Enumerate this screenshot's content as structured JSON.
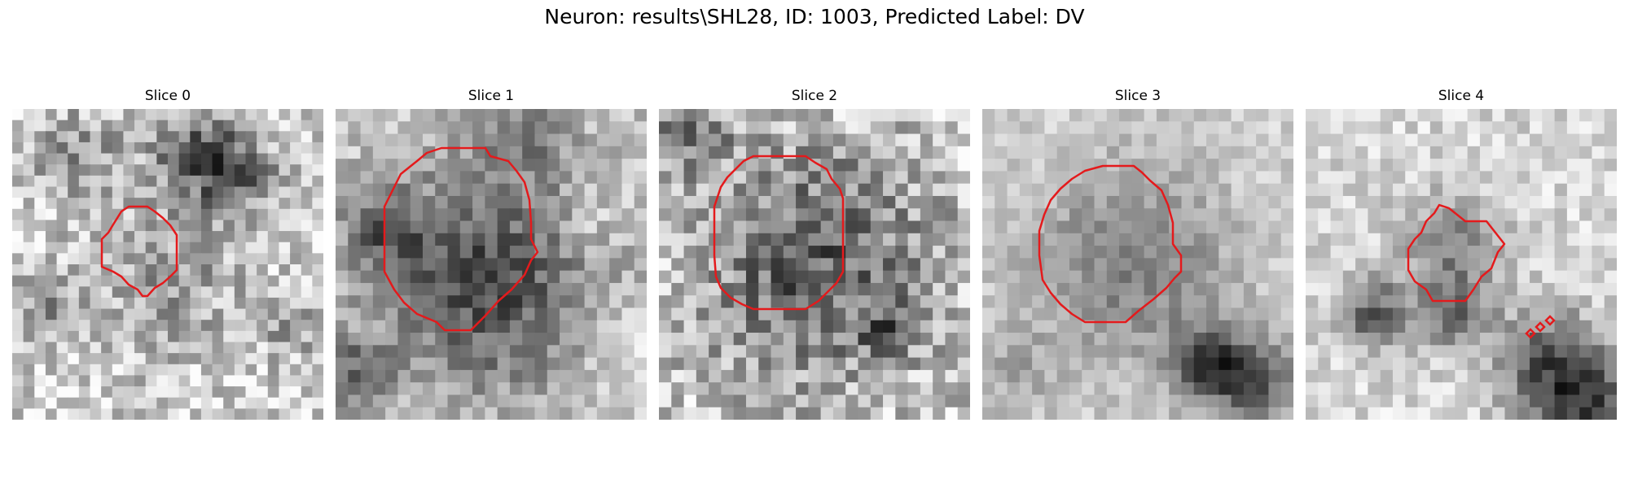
{
  "figure": {
    "title": "Neuron: results\\SHL28, ID: 1003, Predicted Label: DV"
  },
  "panels": [
    {
      "title": "Slice 0"
    },
    {
      "title": "Slice 1"
    },
    {
      "title": "Slice 2"
    },
    {
      "title": "Slice 3"
    },
    {
      "title": "Slice 4"
    }
  ],
  "colors": {
    "contour": "#e41a1c"
  }
}
